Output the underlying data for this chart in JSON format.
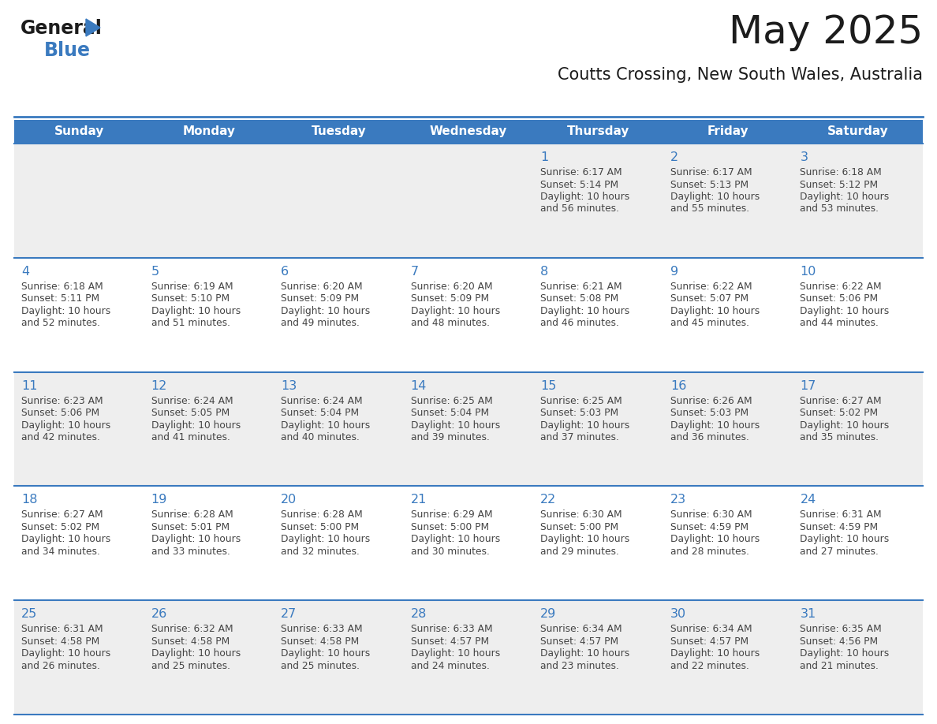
{
  "title": "May 2025",
  "subtitle": "Coutts Crossing, New South Wales, Australia",
  "days_of_week": [
    "Sunday",
    "Monday",
    "Tuesday",
    "Wednesday",
    "Thursday",
    "Friday",
    "Saturday"
  ],
  "header_bg": "#3a7abf",
  "header_text": "#ffffff",
  "row_bg_odd": "#eeeeee",
  "row_bg_even": "#ffffff",
  "day_num_color": "#3a7abf",
  "cell_text_color": "#444444",
  "divider_color": "#3a7abf",
  "calendar": [
    [
      null,
      null,
      null,
      null,
      {
        "day": 1,
        "sunrise": "6:17 AM",
        "sunset": "5:14 PM",
        "daylight_suffix": "56 minutes."
      },
      {
        "day": 2,
        "sunrise": "6:17 AM",
        "sunset": "5:13 PM",
        "daylight_suffix": "55 minutes."
      },
      {
        "day": 3,
        "sunrise": "6:18 AM",
        "sunset": "5:12 PM",
        "daylight_suffix": "53 minutes."
      }
    ],
    [
      {
        "day": 4,
        "sunrise": "6:18 AM",
        "sunset": "5:11 PM",
        "daylight_suffix": "52 minutes."
      },
      {
        "day": 5,
        "sunrise": "6:19 AM",
        "sunset": "5:10 PM",
        "daylight_suffix": "51 minutes."
      },
      {
        "day": 6,
        "sunrise": "6:20 AM",
        "sunset": "5:09 PM",
        "daylight_suffix": "49 minutes."
      },
      {
        "day": 7,
        "sunrise": "6:20 AM",
        "sunset": "5:09 PM",
        "daylight_suffix": "48 minutes."
      },
      {
        "day": 8,
        "sunrise": "6:21 AM",
        "sunset": "5:08 PM",
        "daylight_suffix": "46 minutes."
      },
      {
        "day": 9,
        "sunrise": "6:22 AM",
        "sunset": "5:07 PM",
        "daylight_suffix": "45 minutes."
      },
      {
        "day": 10,
        "sunrise": "6:22 AM",
        "sunset": "5:06 PM",
        "daylight_suffix": "44 minutes."
      }
    ],
    [
      {
        "day": 11,
        "sunrise": "6:23 AM",
        "sunset": "5:06 PM",
        "daylight_suffix": "42 minutes."
      },
      {
        "day": 12,
        "sunrise": "6:24 AM",
        "sunset": "5:05 PM",
        "daylight_suffix": "41 minutes."
      },
      {
        "day": 13,
        "sunrise": "6:24 AM",
        "sunset": "5:04 PM",
        "daylight_suffix": "40 minutes."
      },
      {
        "day": 14,
        "sunrise": "6:25 AM",
        "sunset": "5:04 PM",
        "daylight_suffix": "39 minutes."
      },
      {
        "day": 15,
        "sunrise": "6:25 AM",
        "sunset": "5:03 PM",
        "daylight_suffix": "37 minutes."
      },
      {
        "day": 16,
        "sunrise": "6:26 AM",
        "sunset": "5:03 PM",
        "daylight_suffix": "36 minutes."
      },
      {
        "day": 17,
        "sunrise": "6:27 AM",
        "sunset": "5:02 PM",
        "daylight_suffix": "35 minutes."
      }
    ],
    [
      {
        "day": 18,
        "sunrise": "6:27 AM",
        "sunset": "5:02 PM",
        "daylight_suffix": "34 minutes."
      },
      {
        "day": 19,
        "sunrise": "6:28 AM",
        "sunset": "5:01 PM",
        "daylight_suffix": "33 minutes."
      },
      {
        "day": 20,
        "sunrise": "6:28 AM",
        "sunset": "5:00 PM",
        "daylight_suffix": "32 minutes."
      },
      {
        "day": 21,
        "sunrise": "6:29 AM",
        "sunset": "5:00 PM",
        "daylight_suffix": "30 minutes."
      },
      {
        "day": 22,
        "sunrise": "6:30 AM",
        "sunset": "5:00 PM",
        "daylight_suffix": "29 minutes."
      },
      {
        "day": 23,
        "sunrise": "6:30 AM",
        "sunset": "4:59 PM",
        "daylight_suffix": "28 minutes."
      },
      {
        "day": 24,
        "sunrise": "6:31 AM",
        "sunset": "4:59 PM",
        "daylight_suffix": "27 minutes."
      }
    ],
    [
      {
        "day": 25,
        "sunrise": "6:31 AM",
        "sunset": "4:58 PM",
        "daylight_suffix": "26 minutes."
      },
      {
        "day": 26,
        "sunrise": "6:32 AM",
        "sunset": "4:58 PM",
        "daylight_suffix": "25 minutes."
      },
      {
        "day": 27,
        "sunrise": "6:33 AM",
        "sunset": "4:58 PM",
        "daylight_suffix": "25 minutes."
      },
      {
        "day": 28,
        "sunrise": "6:33 AM",
        "sunset": "4:57 PM",
        "daylight_suffix": "24 minutes."
      },
      {
        "day": 29,
        "sunrise": "6:34 AM",
        "sunset": "4:57 PM",
        "daylight_suffix": "23 minutes."
      },
      {
        "day": 30,
        "sunrise": "6:34 AM",
        "sunset": "4:57 PM",
        "daylight_suffix": "22 minutes."
      },
      {
        "day": 31,
        "sunrise": "6:35 AM",
        "sunset": "4:56 PM",
        "daylight_suffix": "21 minutes."
      }
    ]
  ]
}
